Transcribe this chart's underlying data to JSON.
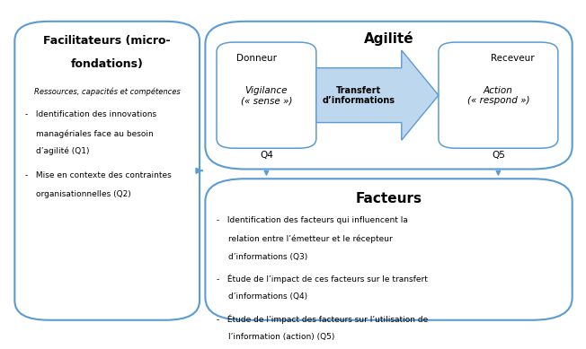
{
  "bg_color": "#ffffff",
  "box_border_color": "#5b9bd5",
  "arrow_color": "#5b9bd5",
  "arrow_fill_color": "#bdd7ee",
  "text_color": "#000000",
  "agilite_title": "Agilité",
  "donneur_label": "Donneur",
  "receveur_label": "Receveur",
  "vigilance_text": "Vigilance\n(« sense »)",
  "transfert_text": "Transfert\nd’informations",
  "action_text": "Action\n(« respond »)",
  "q4_label": "Q4",
  "q5_label": "Q5",
  "facteurs_title": "Facteurs",
  "facteurs_bullets": [
    "Identification des facteurs qui influencent la\nrelation entre l’émetteur et le récepteur\nd’informations (Q3)",
    "Étude de l’impact de ces facteurs sur le transfert\nd’informations (Q4)",
    "Étude de l’impact des facteurs sur l’utilisation de\nl’information (action) (Q5)"
  ]
}
